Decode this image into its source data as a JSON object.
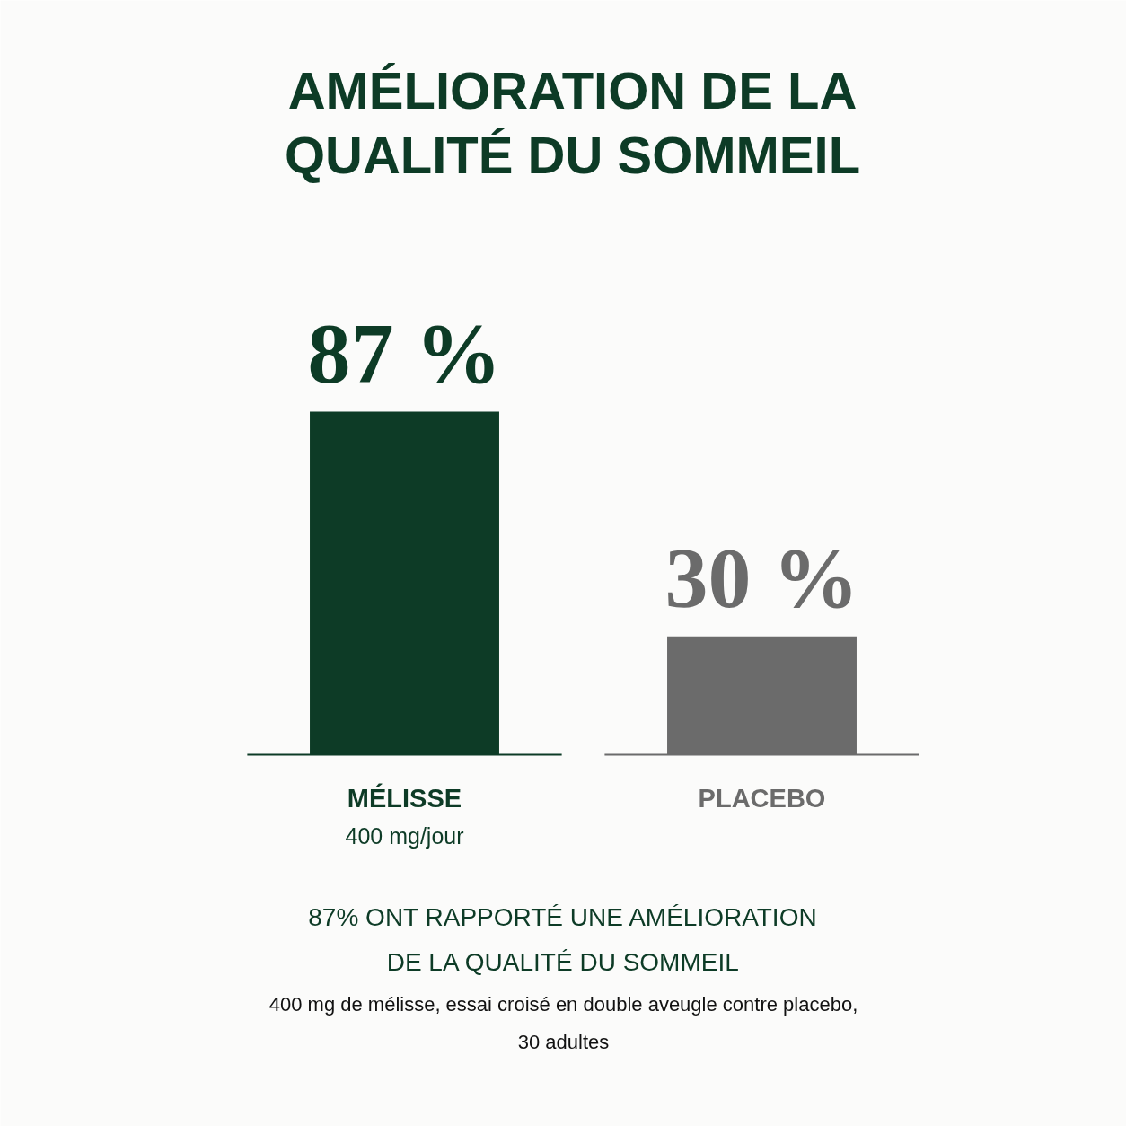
{
  "chart_data": {
    "type": "bar",
    "title": "AMÉLIORATION DE LA\nQUALITÉ DU SOMMEIL",
    "categories": [
      "MÉLISSE\n400 mg/jour",
      "PLACEBO"
    ],
    "values": [
      87,
      30
    ],
    "colors": [
      "#0d3b26",
      "#6b6b6b"
    ],
    "value_labels": [
      "87 %",
      "30 %"
    ],
    "annotations": [
      "87% ONT RAPPORTÉ UNE AMÉLIORATION\nDE LA QUALITÉ DU SOMMEIL",
      "400 mg de mélisse, essai croisé en double aveugle contre placebo,\n30 adultes"
    ]
  }
}
